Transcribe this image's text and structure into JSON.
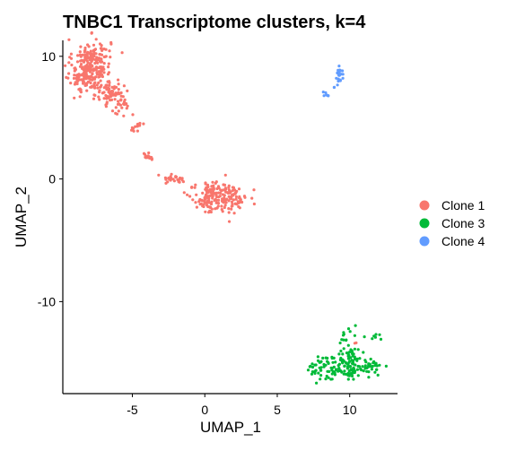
{
  "chart_data": {
    "type": "scatter",
    "title": "TNBC1 Transcriptome clusters, k=4",
    "xlabel": "UMAP_1",
    "ylabel": "UMAP_2",
    "xlim": [
      -9.8,
      13.3
    ],
    "ylim": [
      -17.5,
      11.3
    ],
    "x_ticks": [
      -5,
      0,
      5,
      10
    ],
    "y_ticks": [
      -10,
      0,
      10
    ],
    "x_tick_labels": [
      "-5",
      "0",
      "5",
      "10"
    ],
    "y_tick_labels": [
      "-10",
      "0",
      "10"
    ],
    "grid": false,
    "legend_position": "right",
    "series": [
      {
        "name": "Clone 1",
        "color": "#F8766D",
        "clusters": [
          {
            "cx": -7.8,
            "cy": 9.6,
            "sx": 0.65,
            "sy": 0.9,
            "n": 180
          },
          {
            "cx": -8.2,
            "cy": 8.2,
            "sx": 0.55,
            "sy": 0.7,
            "n": 90
          },
          {
            "cx": -6.5,
            "cy": 7.0,
            "sx": 0.45,
            "sy": 0.55,
            "n": 70
          },
          {
            "cx": -5.8,
            "cy": 6.0,
            "sx": 0.35,
            "sy": 0.4,
            "n": 25
          },
          {
            "cx": -4.7,
            "cy": 4.4,
            "sx": 0.25,
            "sy": 0.3,
            "n": 15
          },
          {
            "cx": -3.9,
            "cy": 1.9,
            "sx": 0.2,
            "sy": 0.2,
            "n": 15
          },
          {
            "cx": -1.9,
            "cy": 0.0,
            "sx": 0.5,
            "sy": 0.2,
            "n": 25
          },
          {
            "cx": 0.2,
            "cy": -1.7,
            "sx": 0.6,
            "sy": 0.55,
            "n": 80
          },
          {
            "cx": 1.8,
            "cy": -1.5,
            "sx": 0.55,
            "sy": 0.6,
            "n": 90
          },
          {
            "cx": 0.5,
            "cy": -0.8,
            "sx": 0.35,
            "sy": 0.3,
            "n": 30
          },
          {
            "cx": 10.4,
            "cy": -13.5,
            "sx": 0.1,
            "sy": 0.1,
            "n": 2
          }
        ]
      },
      {
        "name": "Clone 3",
        "color": "#00BA38",
        "clusters": [
          {
            "cx": 9.4,
            "cy": -15.4,
            "sx": 1.1,
            "sy": 0.5,
            "n": 130
          },
          {
            "cx": 10.0,
            "cy": -13.8,
            "sx": 0.45,
            "sy": 0.9,
            "n": 45
          },
          {
            "cx": 11.5,
            "cy": -15.2,
            "sx": 0.3,
            "sy": 0.2,
            "n": 20
          },
          {
            "cx": 11.9,
            "cy": -12.9,
            "sx": 0.15,
            "sy": 0.2,
            "n": 6
          }
        ]
      },
      {
        "name": "Clone 4",
        "color": "#619CFF",
        "clusters": [
          {
            "cx": 9.3,
            "cy": 8.5,
            "sx": 0.15,
            "sy": 0.3,
            "n": 25
          },
          {
            "cx": 8.4,
            "cy": 6.9,
            "sx": 0.15,
            "sy": 0.15,
            "n": 7
          },
          {
            "cx": 8.9,
            "cy": 7.4,
            "sx": 0.05,
            "sy": 0.05,
            "n": 2
          }
        ]
      }
    ]
  }
}
